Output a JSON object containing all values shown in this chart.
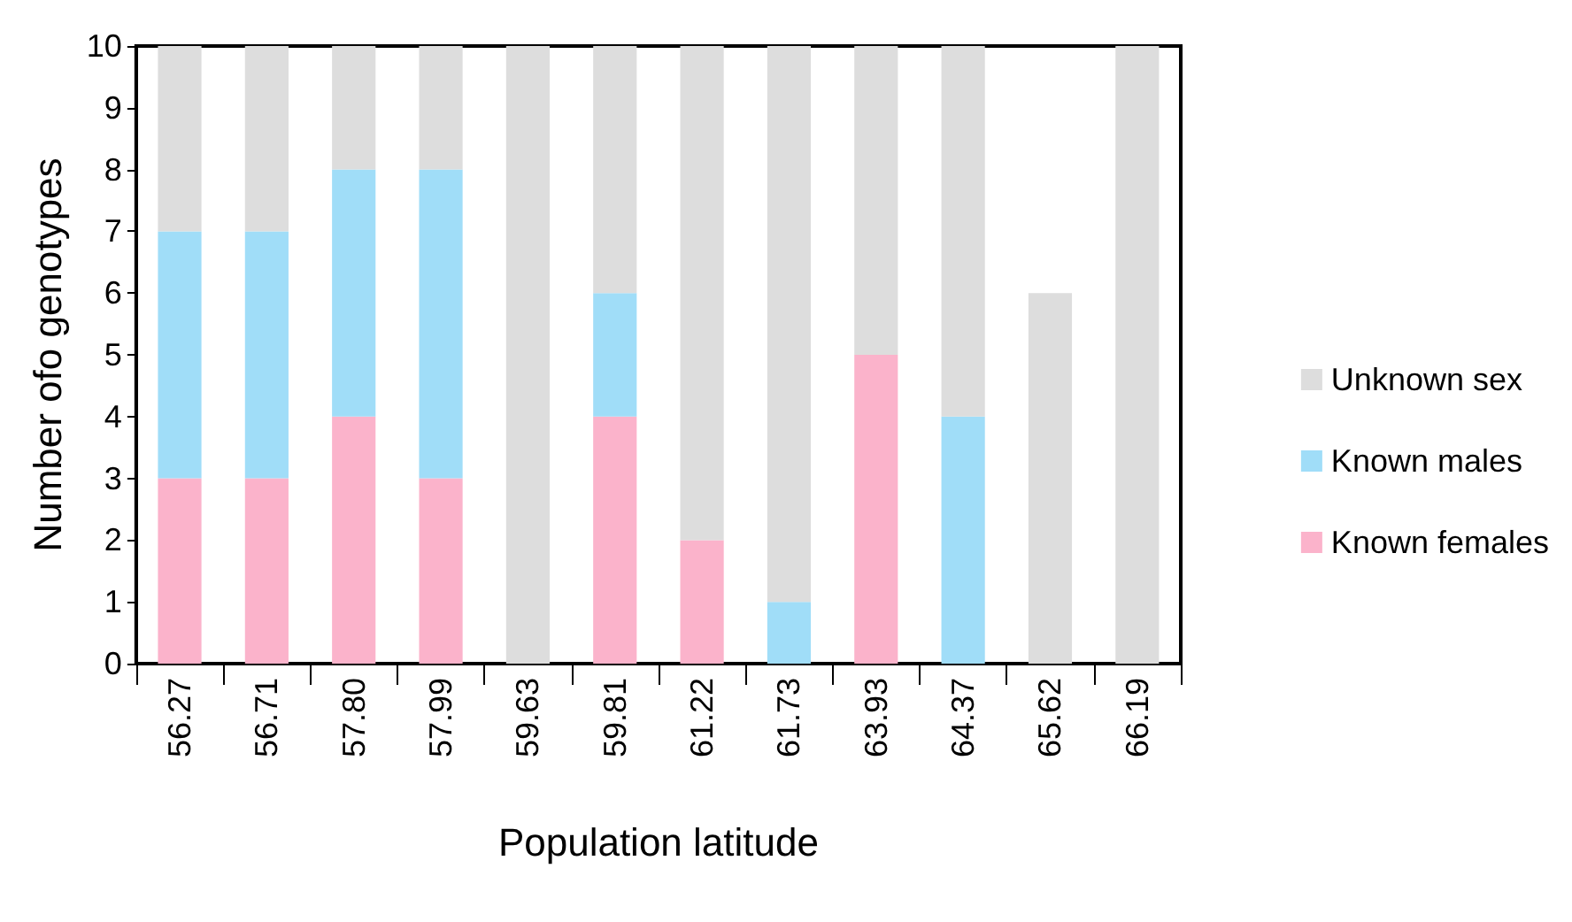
{
  "chart_data": {
    "type": "bar",
    "stacked": true,
    "xlabel": "Population latitude",
    "ylabel": "Number ofo genotypes",
    "categories": [
      "56.27",
      "56.71",
      "57.80",
      "57.99",
      "59.63",
      "59.81",
      "61.22",
      "61.73",
      "63.93",
      "64.37",
      "65.62",
      "66.19"
    ],
    "series": [
      {
        "name": "Known females",
        "color": "#fbb3cb",
        "values": [
          3,
          3,
          4,
          3,
          0,
          4,
          2,
          0,
          5,
          0,
          0,
          0
        ]
      },
      {
        "name": "Known males",
        "color": "#a0ddf8",
        "values": [
          4,
          4,
          4,
          5,
          0,
          2,
          0,
          1,
          0,
          4,
          0,
          0
        ]
      },
      {
        "name": "Unknown sex",
        "color": "#dddddd",
        "values": [
          3,
          3,
          2,
          2,
          10,
          4,
          8,
          9,
          5,
          6,
          6,
          10
        ]
      }
    ],
    "ylim": [
      0,
      10
    ],
    "yticks": [
      0,
      1,
      2,
      3,
      4,
      5,
      6,
      7,
      8,
      9,
      10
    ],
    "grid": false,
    "legend": "right"
  }
}
